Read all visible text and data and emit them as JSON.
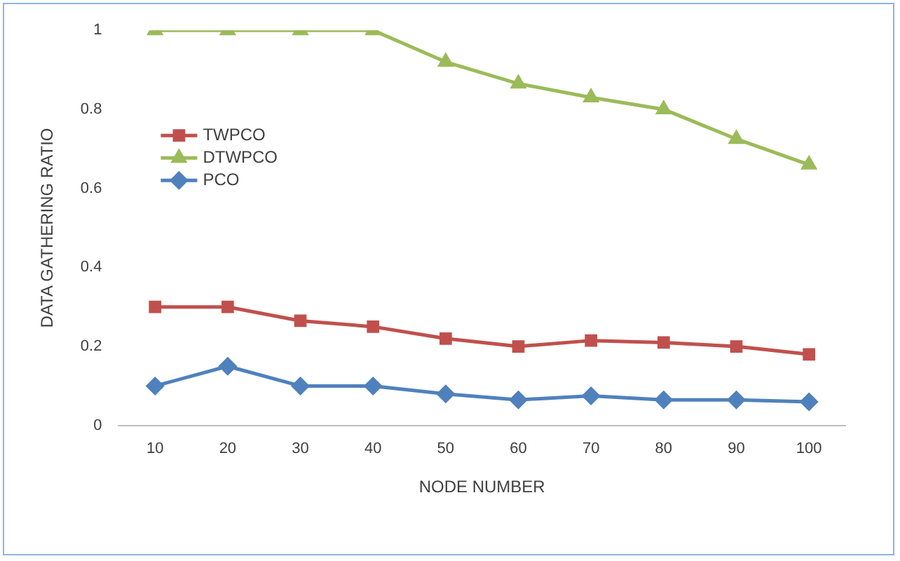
{
  "chart_data": {
    "type": "line",
    "xlabel": "NODE NUMBER",
    "ylabel": "DATA GATHERING RATIO",
    "categories": [
      "10",
      "20",
      "30",
      "40",
      "50",
      "60",
      "70",
      "80",
      "90",
      "100"
    ],
    "series": [
      {
        "name": "TWPCO",
        "color": "#c0504d",
        "marker": "square",
        "values": [
          0.3,
          0.3,
          0.265,
          0.25,
          0.22,
          0.2,
          0.215,
          0.21,
          0.2,
          0.18
        ]
      },
      {
        "name": "DTWPCO",
        "color": "#9bbb59",
        "marker": "triangle",
        "values": [
          1,
          1,
          1,
          1,
          0.92,
          0.865,
          0.83,
          0.8,
          0.725,
          0.66
        ]
      },
      {
        "name": "PCO",
        "color": "#4f81bd",
        "marker": "diamond",
        "values": [
          0.1,
          0.15,
          0.1,
          0.1,
          0.08,
          0.065,
          0.075,
          0.065,
          0.065,
          0.06
        ]
      }
    ],
    "ylim": [
      0,
      1
    ],
    "yticks": [
      0,
      0.2,
      0.4,
      0.6,
      0.8,
      1
    ],
    "grid": false,
    "legend": "top left",
    "line_style": "solid"
  }
}
